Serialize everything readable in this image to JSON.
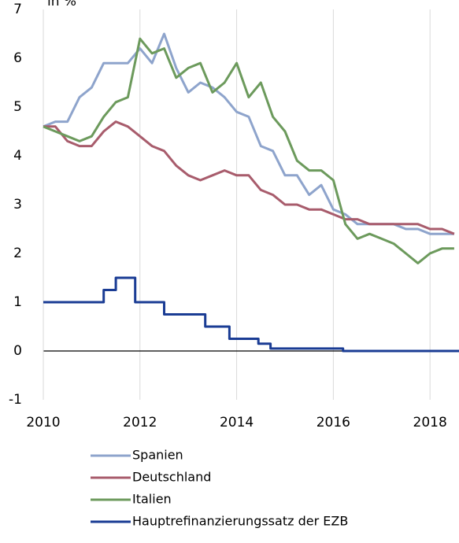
{
  "chart_data": {
    "type": "line",
    "title": "in %",
    "x": [
      2010,
      2010.25,
      2010.5,
      2010.75,
      2011,
      2011.25,
      2011.5,
      2011.75,
      2012,
      2012.25,
      2012.5,
      2012.75,
      2013,
      2013.25,
      2013.5,
      2013.75,
      2014,
      2014.25,
      2014.5,
      2014.75,
      2015,
      2015.25,
      2015.5,
      2015.75,
      2016,
      2016.25,
      2016.5,
      2016.75,
      2017,
      2017.25,
      2017.5,
      2017.75,
      2018,
      2018.25,
      2018.5
    ],
    "series": [
      {
        "name": "Spanien",
        "color": "#8ea4cc",
        "values": [
          4.6,
          4.7,
          4.7,
          5.2,
          5.4,
          5.9,
          5.9,
          5.9,
          6.2,
          5.9,
          6.5,
          5.8,
          5.3,
          5.5,
          5.4,
          5.2,
          4.9,
          4.8,
          4.2,
          4.1,
          3.6,
          3.6,
          3.2,
          3.4,
          2.9,
          2.8,
          2.6,
          2.6,
          2.6,
          2.6,
          2.5,
          2.5,
          2.4,
          2.4,
          2.4
        ]
      },
      {
        "name": "Deutschland",
        "color": "#a85c6c",
        "values": [
          4.6,
          4.6,
          4.3,
          4.2,
          4.2,
          4.5,
          4.7,
          4.6,
          4.4,
          4.2,
          4.1,
          3.8,
          3.6,
          3.5,
          3.6,
          3.7,
          3.6,
          3.6,
          3.3,
          3.2,
          3.0,
          3.0,
          2.9,
          2.9,
          2.8,
          2.7,
          2.7,
          2.6,
          2.6,
          2.6,
          2.6,
          2.6,
          2.5,
          2.5,
          2.4
        ]
      },
      {
        "name": "Italien",
        "color": "#6c9a5c",
        "values": [
          4.6,
          4.5,
          4.4,
          4.3,
          4.4,
          4.8,
          5.1,
          5.2,
          6.4,
          6.1,
          6.2,
          5.6,
          5.8,
          5.9,
          5.3,
          5.5,
          5.9,
          5.2,
          5.5,
          4.8,
          4.5,
          3.9,
          3.7,
          3.7,
          3.5,
          2.6,
          2.3,
          2.4,
          2.3,
          2.2,
          2.0,
          1.8,
          2.0,
          2.1,
          2.1
        ]
      },
      {
        "name": "Hauptrefinanzierungssatz der EZB",
        "color": "#1a3c94",
        "x": [
          2010,
          2011.25,
          2011.25,
          2011.5,
          2011.5,
          2011.9,
          2011.9,
          2012.5,
          2012.5,
          2013.35,
          2013.35,
          2013.85,
          2013.85,
          2014.45,
          2014.45,
          2014.7,
          2014.7,
          2016.2,
          2016.2,
          2018.6
        ],
        "values": [
          1,
          1,
          1.25,
          1.25,
          1.5,
          1.5,
          1,
          1,
          0.75,
          0.75,
          0.5,
          0.5,
          0.25,
          0.25,
          0.15,
          0.15,
          0.05,
          0.05,
          0,
          0
        ]
      }
    ],
    "xlim": [
      2010,
      2018.6
    ],
    "xticks": [
      2010,
      2012,
      2014,
      2016,
      2018
    ],
    "ylim": [
      -1,
      7
    ],
    "yticks": [
      -1,
      0,
      1,
      2,
      3,
      4,
      5,
      6,
      7
    ],
    "grid": true
  }
}
